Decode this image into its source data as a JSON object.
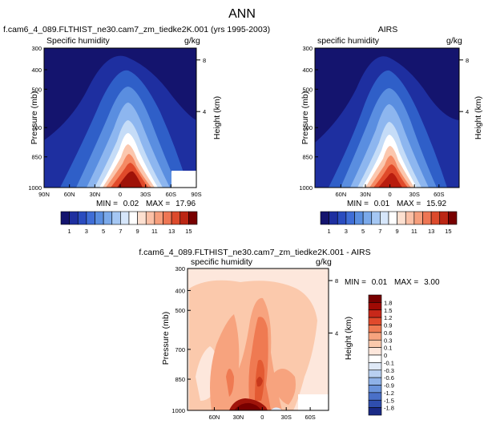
{
  "page_title": "ANN",
  "colors": {
    "blue_dark": "#14146e",
    "blue_mid": "#2f5fc8",
    "red_dark": "#780000",
    "white": "#ffffff"
  },
  "panels": [
    {
      "title": "f.cam6_4_089.FLTHIST_ne30.cam7_zm_tiedke2K.001 (yrs 1995-2003)",
      "variable": "Specific humidity",
      "units": "g/kg",
      "ylabel": "Pressure (mb)",
      "ylabel_right": "Height (km)",
      "x_ticks": [
        "90N",
        "60N",
        "30N",
        "0",
        "30S",
        "60S",
        "90S"
      ],
      "y_ticks": [
        "300",
        "400",
        "500",
        "700",
        "850",
        "1000"
      ],
      "height_ticks": [
        "8",
        "4"
      ],
      "min_label": "MIN =",
      "min_value": "0.02",
      "max_label": "MAX =",
      "max_value": "17.96",
      "colorbar_ticks": [
        "1",
        "3",
        "5",
        "7",
        "9",
        "11",
        "13",
        "15"
      ]
    },
    {
      "title": "AIRS",
      "variable": "specific humidity",
      "units": "g/kg",
      "ylabel": "Pressure (mb)",
      "ylabel_right": "Height (km)",
      "x_ticks": [
        "60N",
        "30N",
        "0",
        "30S",
        "60S"
      ],
      "y_ticks": [
        "300",
        "400",
        "500",
        "700",
        "850",
        "1000"
      ],
      "height_ticks": [
        "8",
        "4"
      ],
      "min_label": "MIN =",
      "min_value": "0.01",
      "max_label": "MAX =",
      "max_value": "15.92",
      "colorbar_ticks": [
        "1",
        "3",
        "5",
        "7",
        "9",
        "11",
        "13",
        "15"
      ]
    },
    {
      "title": "f.cam6_4_089.FLTHIST_ne30.cam7_zm_tiedke2K.001 - AIRS",
      "variable": "specific humidity",
      "units": "g/kg",
      "ylabel": "Pressure (mb)",
      "ylabel_right": "Height (km)",
      "x_ticks": [
        "60N",
        "30N",
        "0",
        "30S",
        "60S"
      ],
      "y_ticks": [
        "300",
        "400",
        "500",
        "700",
        "850",
        "1000"
      ],
      "height_ticks": [
        "8",
        "4"
      ],
      "min_label": "MIN =",
      "min_value": "0.01",
      "max_label": "MAX =",
      "max_value": "3.00",
      "colorbar_ticks": [
        "1.8",
        "1.5",
        "1.2",
        "0.9",
        "0.6",
        "0.3",
        "0.1",
        "0",
        "-0.1",
        "-0.3",
        "-0.6",
        "-0.9",
        "-1.2",
        "-1.5",
        "-1.8"
      ]
    }
  ],
  "chart_data": [
    {
      "type": "heatmap",
      "title": "Specific humidity",
      "xlabel": "",
      "ylabel": "Pressure (mb)",
      "x_range": [
        "90N",
        "90S"
      ],
      "ylim": [
        1000,
        300
      ],
      "levels": [
        1,
        2,
        3,
        4,
        5,
        6,
        7,
        8,
        9,
        10,
        11,
        12,
        13,
        14,
        15,
        16
      ],
      "peak": {
        "lat": "0",
        "pressure": 1000,
        "value": 17.96
      },
      "min": 0.02,
      "max": 17.96
    },
    {
      "type": "heatmap",
      "title": "AIRS",
      "xlabel": "",
      "ylabel": "Pressure (mb)",
      "x_range": [
        "60N",
        "60S"
      ],
      "ylim": [
        1000,
        300
      ],
      "levels": [
        1,
        2,
        3,
        4,
        5,
        6,
        7,
        8,
        9,
        10,
        11,
        12,
        13,
        14,
        15,
        16
      ],
      "peak": {
        "lat": "0",
        "pressure": 1000,
        "value": 15.92
      },
      "min": 0.01,
      "max": 15.92
    },
    {
      "type": "heatmap",
      "title": "f.cam6_4_089.FLTHIST_ne30.cam7_zm_tiedke2K.001 - AIRS",
      "xlabel": "",
      "ylabel": "Pressure (mb)",
      "x_range": [
        "60N",
        "60S"
      ],
      "ylim": [
        1000,
        300
      ],
      "levels": [
        -1.8,
        -1.5,
        -1.2,
        -0.9,
        -0.6,
        -0.3,
        -0.1,
        0,
        0.1,
        0.3,
        0.6,
        0.9,
        1.2,
        1.5,
        1.8
      ],
      "min": 0.01,
      "max": 3.0
    }
  ]
}
